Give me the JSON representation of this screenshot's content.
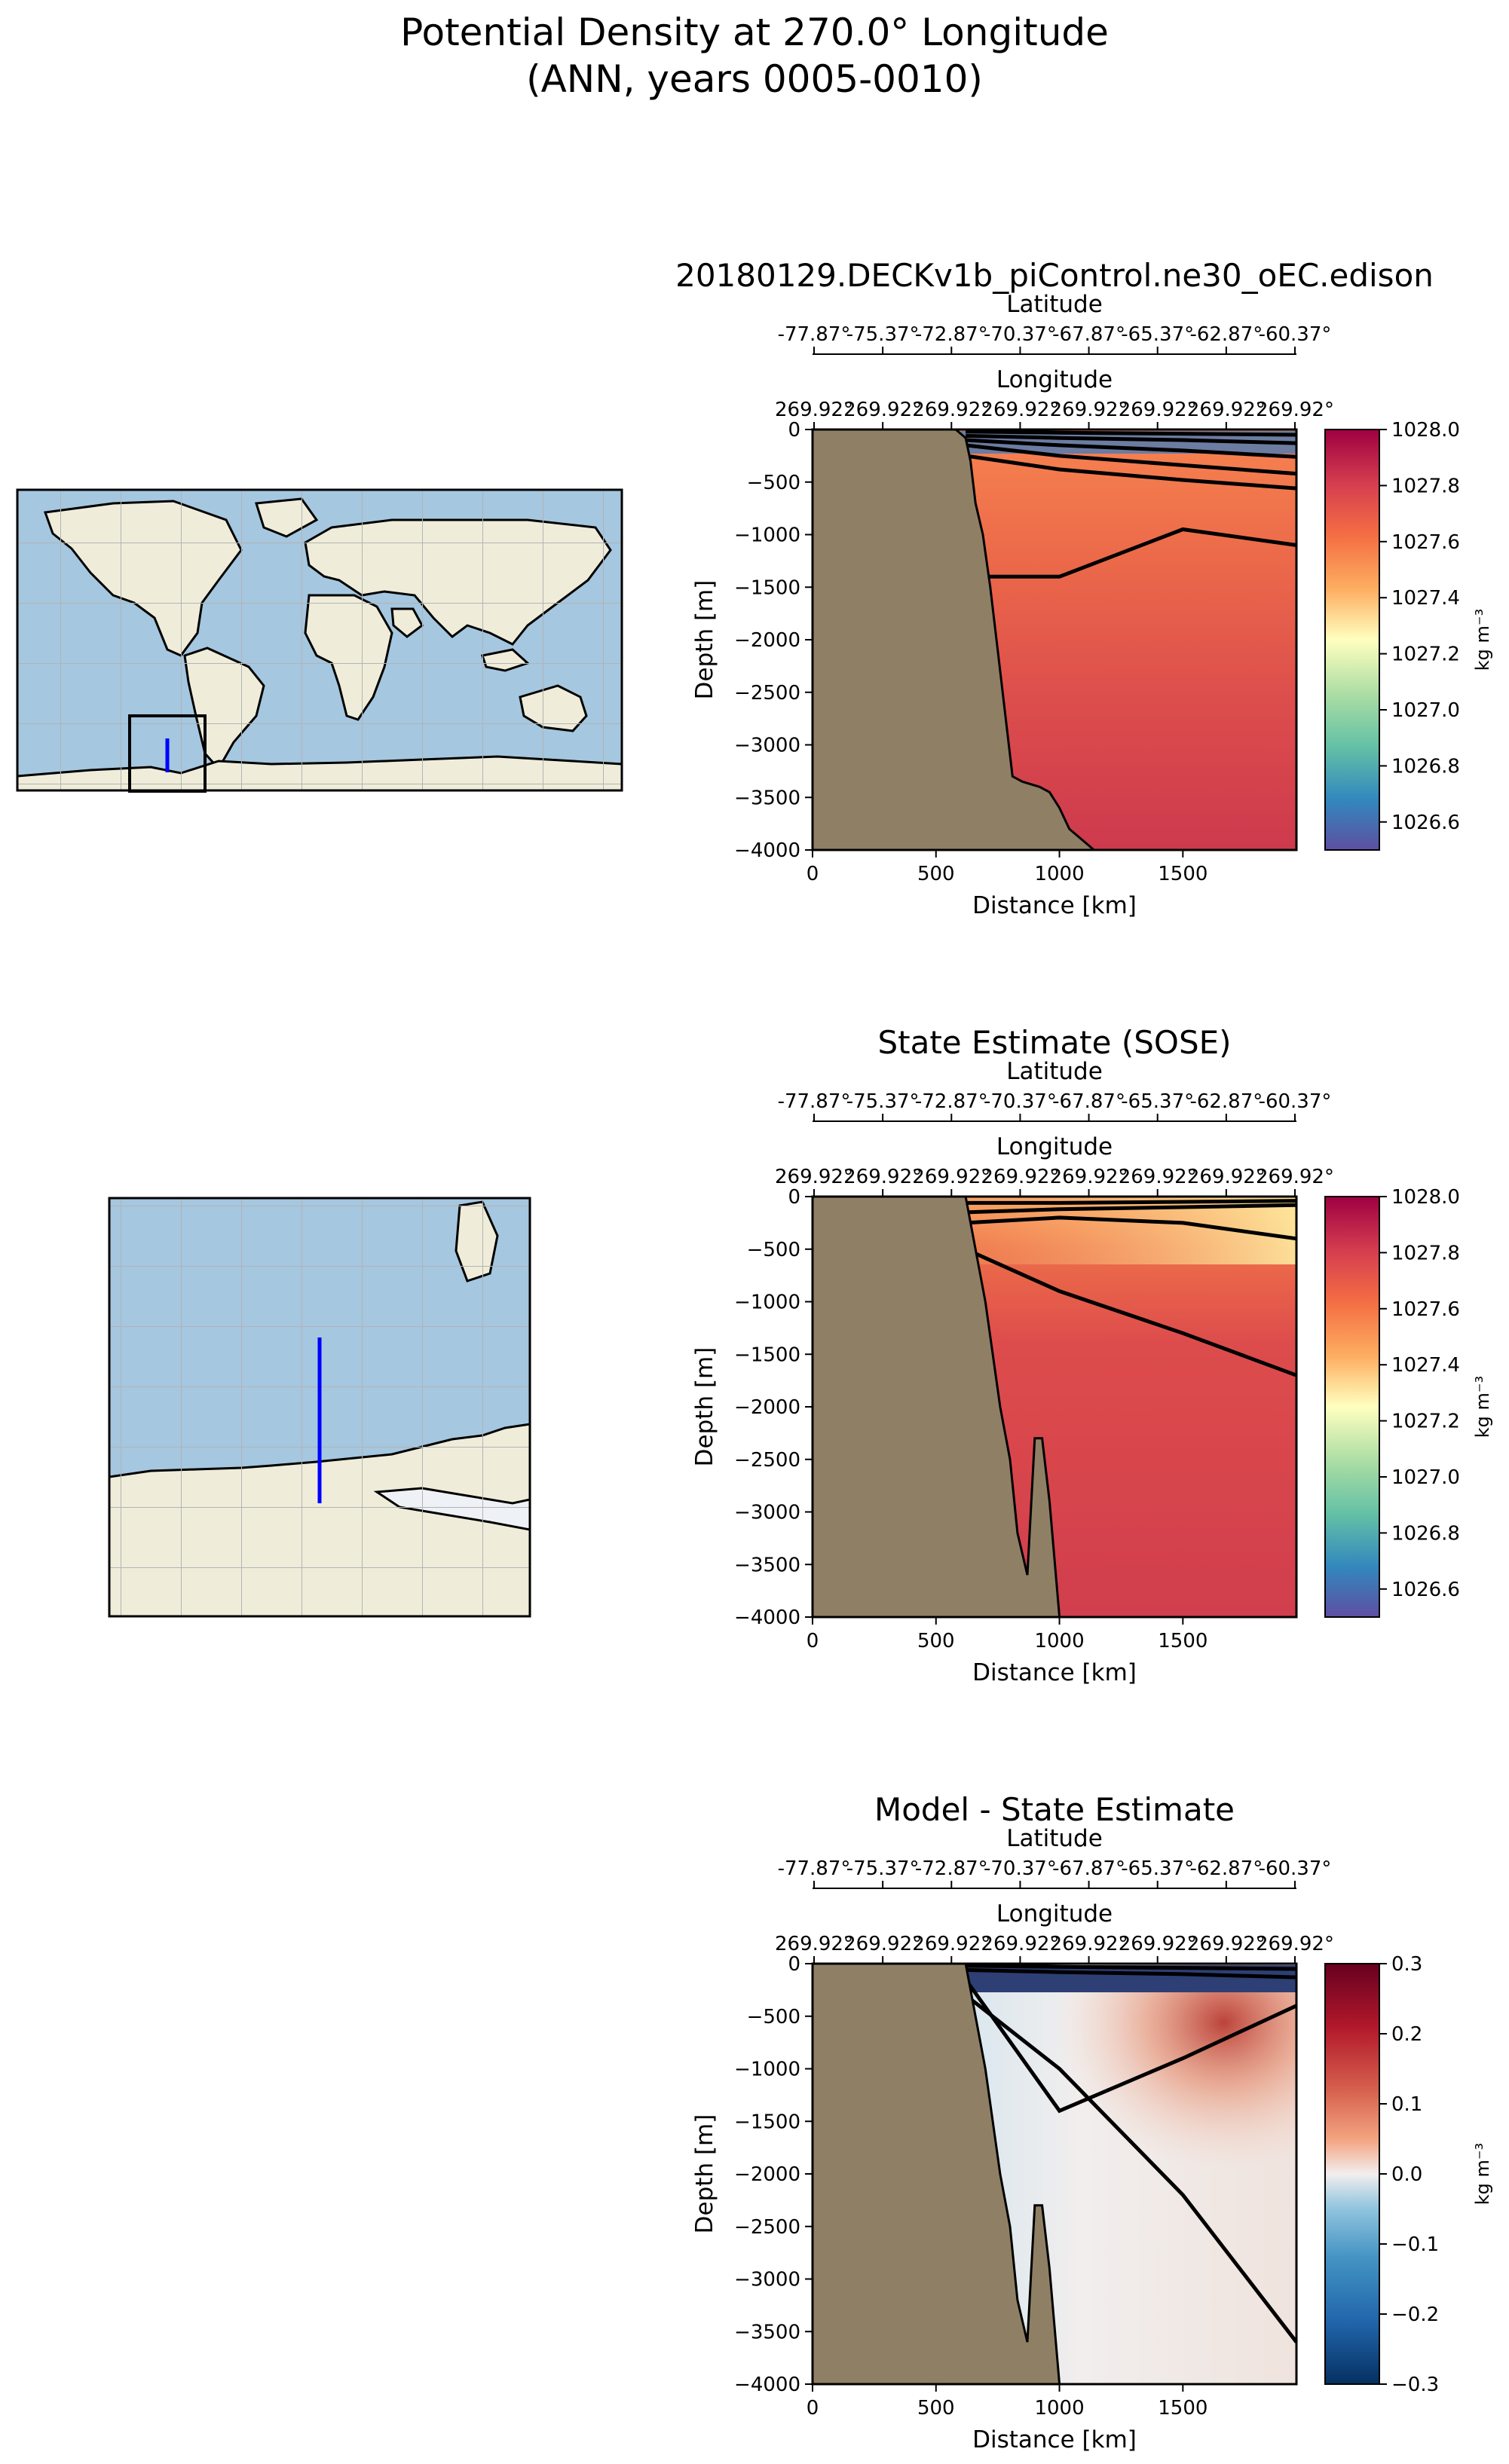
{
  "figure": {
    "title_line1": "Potential Density at 270.0° Longitude",
    "title_line2": "(ANN, years 0005-0010)"
  },
  "colors": {
    "land": "#8f8065",
    "map_ocean": "#a5c7e0",
    "map_land": "#efedda",
    "transect": "#0000ff",
    "contour": "#000000"
  },
  "chart_data": [
    {
      "type": "heatmap",
      "title": "20180129.DECKv1b_piControl.ne30_oEC.edison",
      "xlabel": "Distance [km]",
      "ylabel": "Depth [m]",
      "top_axis_1_label": "Latitude",
      "top_axis_1_ticks": [
        "-77.87°",
        "-75.37°",
        "-72.87°",
        "-70.37°",
        "-67.87°",
        "-65.37°",
        "-62.87°",
        "-60.37°"
      ],
      "top_axis_2_label": "Longitude",
      "top_axis_2_ticks": [
        "269.92°",
        "269.92°",
        "269.92°",
        "269.92°",
        "269.92°",
        "269.92°",
        "269.92°",
        "269.92°"
      ],
      "x_ticks": [
        "0",
        "500",
        "1000",
        "1500"
      ],
      "y_ticks": [
        "0",
        "−500",
        "−1000",
        "−1500",
        "−2000",
        "−2500",
        "−3000",
        "−3500",
        "−4000"
      ],
      "xlim": [
        0,
        1960
      ],
      "ylim": [
        -4000,
        0
      ],
      "colorbar": {
        "label": "kg m⁻³",
        "range": [
          1026.5,
          1028.0
        ],
        "ticks": [
          "1028.0",
          "1027.8",
          "1027.6",
          "1027.4",
          "1027.2",
          "1027.0",
          "1026.8",
          "1026.6"
        ],
        "colormap": "Spectral_r"
      },
      "bathymetry": [
        [
          0,
          0
        ],
        [
          580,
          0
        ],
        [
          620,
          -80
        ],
        [
          640,
          -300
        ],
        [
          660,
          -700
        ],
        [
          690,
          -1000
        ],
        [
          720,
          -1500
        ],
        [
          750,
          -2100
        ],
        [
          780,
          -2700
        ],
        [
          810,
          -3300
        ],
        [
          850,
          -3350
        ],
        [
          920,
          -3400
        ],
        [
          960,
          -3450
        ],
        [
          1000,
          -3600
        ],
        [
          1040,
          -3800
        ],
        [
          1090,
          -3900
        ],
        [
          1140,
          -4000
        ]
      ],
      "contour_depths": [
        [
          -20,
          -30,
          -40,
          -50
        ],
        [
          -60,
          -80,
          -100,
          -130
        ],
        [
          -100,
          -150,
          -200,
          -260
        ],
        [
          -150,
          -250,
          -340,
          -420
        ],
        [
          -250,
          -380,
          -480,
          -560
        ],
        [
          -1400,
          -1400,
          -950,
          -1100
        ]
      ]
    },
    {
      "type": "heatmap",
      "title": "State Estimate (SOSE)",
      "xlabel": "Distance [km]",
      "ylabel": "Depth [m]",
      "top_axis_1_label": "Latitude",
      "top_axis_1_ticks": [
        "-77.87°",
        "-75.37°",
        "-72.87°",
        "-70.37°",
        "-67.87°",
        "-65.37°",
        "-62.87°",
        "-60.37°"
      ],
      "top_axis_2_label": "Longitude",
      "top_axis_2_ticks": [
        "269.92°",
        "269.92°",
        "269.92°",
        "269.92°",
        "269.92°",
        "269.92°",
        "269.92°",
        "269.92°"
      ],
      "x_ticks": [
        "0",
        "500",
        "1000",
        "1500"
      ],
      "y_ticks": [
        "0",
        "−500",
        "−1000",
        "−1500",
        "−2000",
        "−2500",
        "−3000",
        "−3500",
        "−4000"
      ],
      "xlim": [
        0,
        1960
      ],
      "ylim": [
        -4000,
        0
      ],
      "colorbar": {
        "label": "kg m⁻³",
        "range": [
          1026.5,
          1028.0
        ],
        "ticks": [
          "1028.0",
          "1027.8",
          "1027.6",
          "1027.4",
          "1027.2",
          "1027.0",
          "1026.8",
          "1026.6"
        ],
        "colormap": "Spectral_r"
      },
      "bathymetry": [
        [
          0,
          0
        ],
        [
          620,
          0
        ],
        [
          660,
          -500
        ],
        [
          700,
          -1000
        ],
        [
          760,
          -2000
        ],
        [
          800,
          -2500
        ],
        [
          830,
          -3200
        ],
        [
          870,
          -3600
        ],
        [
          900,
          -2300
        ],
        [
          930,
          -2300
        ],
        [
          960,
          -2900
        ],
        [
          1000,
          -4000
        ]
      ],
      "contour_depths": [
        [
          -60,
          -60,
          -50,
          -40
        ],
        [
          -150,
          -120,
          -100,
          -80
        ],
        [
          -250,
          -200,
          -250,
          -400
        ],
        [
          -500,
          -900,
          -1300,
          -1700
        ]
      ]
    },
    {
      "type": "heatmap",
      "title": "Model - State Estimate",
      "xlabel": "Distance [km]",
      "ylabel": "Depth [m]",
      "top_axis_1_label": "Latitude",
      "top_axis_1_ticks": [
        "-77.87°",
        "-75.37°",
        "-72.87°",
        "-70.37°",
        "-67.87°",
        "-65.37°",
        "-62.87°",
        "-60.37°"
      ],
      "top_axis_2_label": "Longitude",
      "top_axis_2_ticks": [
        "269.92°",
        "269.92°",
        "269.92°",
        "269.92°",
        "269.92°",
        "269.92°",
        "269.92°",
        "269.92°"
      ],
      "x_ticks": [
        "0",
        "500",
        "1000",
        "1500"
      ],
      "y_ticks": [
        "0",
        "−500",
        "−1000",
        "−1500",
        "−2000",
        "−2500",
        "−3000",
        "−3500",
        "−4000"
      ],
      "xlim": [
        0,
        1960
      ],
      "ylim": [
        -4000,
        0
      ],
      "colorbar": {
        "label": "kg m⁻³",
        "range": [
          -0.3,
          0.3
        ],
        "ticks": [
          "0.3",
          "0.2",
          "0.1",
          "0.0",
          "−0.1",
          "−0.2",
          "−0.3"
        ],
        "colormap": "RdBu_r"
      },
      "bathymetry": [
        [
          0,
          0
        ],
        [
          620,
          0
        ],
        [
          660,
          -500
        ],
        [
          700,
          -1000
        ],
        [
          760,
          -2000
        ],
        [
          800,
          -2500
        ],
        [
          830,
          -3200
        ],
        [
          870,
          -3600
        ],
        [
          900,
          -2300
        ],
        [
          930,
          -2300
        ],
        [
          960,
          -2900
        ],
        [
          1000,
          -4000
        ]
      ],
      "contour_depths": [
        [
          -20,
          -30,
          -40,
          -50
        ],
        [
          -60,
          -80,
          -100,
          -130
        ],
        [
          -150,
          -1400,
          -900,
          -400
        ],
        [
          -300,
          -1000,
          -2200,
          -3600
        ]
      ]
    }
  ]
}
